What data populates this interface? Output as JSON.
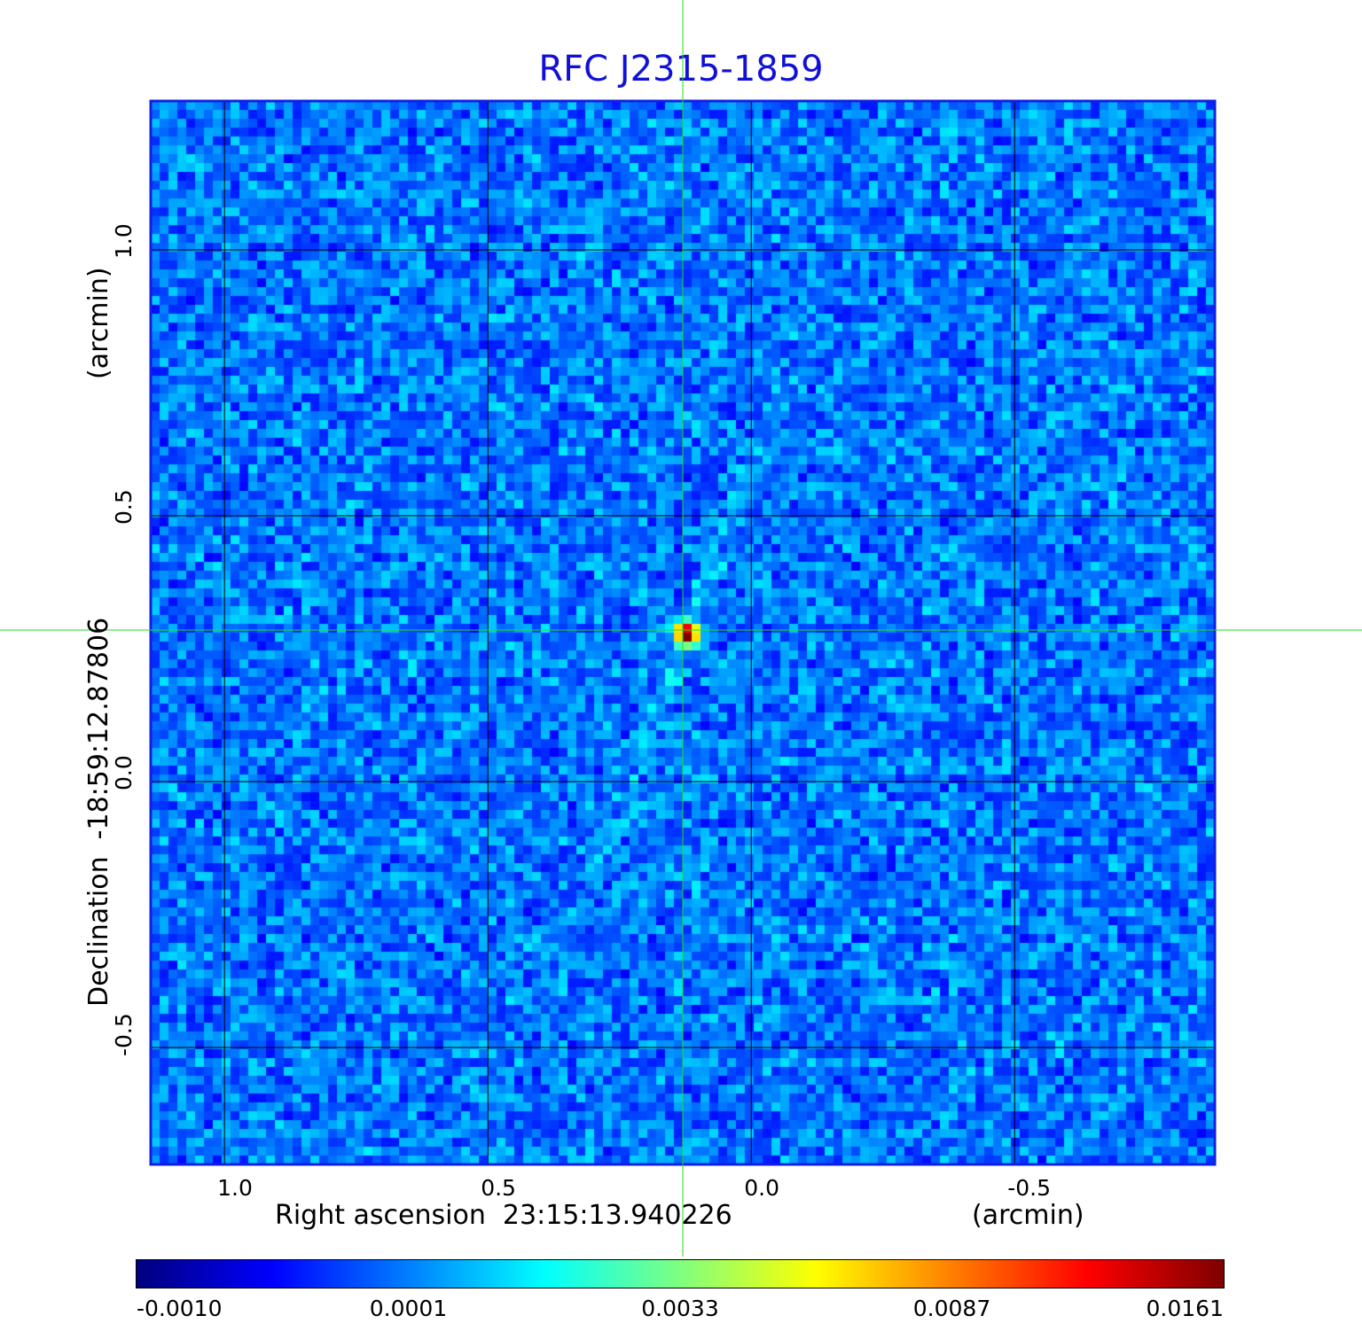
{
  "chart_data": {
    "type": "heatmap",
    "title": "RFC J2315-1859",
    "xlabel": "Right ascension  23:15:13.940226",
    "xunit": "(arcmin)",
    "ylabel": "Declination  -18:59:12.87806",
    "yunit": "(arcmin)",
    "xlim": [
      1.14,
      -0.88
    ],
    "ylim": [
      -0.72,
      1.28
    ],
    "x_ticks": [
      "1.0",
      "0.5",
      "0.0",
      "-0.5"
    ],
    "x_tick_values": [
      1.0,
      0.5,
      0.0,
      -0.5
    ],
    "y_ticks": [
      "1.0",
      "0.5",
      "0.0",
      "-0.5"
    ],
    "y_tick_values": [
      1.0,
      0.5,
      0.0,
      -0.5
    ],
    "grid": true,
    "crosshair": {
      "x": 0.13,
      "y": 0.285
    },
    "colorbar": {
      "colormap": "jet",
      "ticks": [
        "-0.0010",
        "0.0001",
        "0.0033",
        "0.0087",
        "0.0161"
      ]
    },
    "peak": {
      "x": 0.13,
      "y": 0.285,
      "value": 0.0161
    },
    "colors": {
      "frame": "#1020e0",
      "grid": "#000000",
      "crosshair": "#22dd22",
      "title": "#1010d8"
    }
  }
}
